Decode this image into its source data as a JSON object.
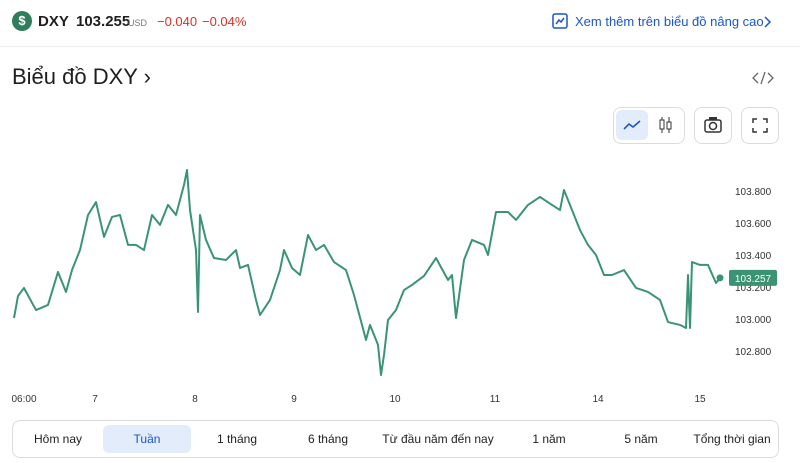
{
  "header": {
    "symbol": "DXY",
    "price": "103.255",
    "currency": "USD",
    "change": "−0.040",
    "change_percent": "−0.04%",
    "link": "Xem thêm trên biểu đồ nâng cao"
  },
  "chart_data": {
    "type": "line",
    "title": "Biểu đồ DXY ›",
    "color": "#3a9474",
    "x": [
      0,
      0.04,
      0.1,
      0.22,
      0.34,
      0.44,
      0.52,
      0.58,
      0.66,
      0.74,
      0.82,
      0.9,
      0.98,
      1.06,
      1.14,
      1.22,
      1.3,
      1.38,
      1.46,
      1.54,
      1.62,
      1.7,
      1.73,
      1.76,
      1.82,
      1.84,
      1.86,
      1.92,
      2.0,
      2.12,
      2.22,
      2.26,
      2.34,
      2.42,
      2.46,
      2.56,
      2.66,
      2.7,
      2.78,
      2.86,
      2.94,
      3.02,
      3.1,
      3.2,
      3.32,
      3.4,
      3.48,
      3.52,
      3.56,
      3.64,
      3.67,
      3.7,
      3.74,
      3.82,
      3.9,
      3.98,
      4.1,
      4.22,
      4.34,
      4.38,
      4.42,
      4.5,
      4.58,
      4.7,
      4.74,
      4.82,
      4.94,
      5.02,
      5.14,
      5.26,
      5.38,
      5.46,
      5.5,
      5.58,
      5.66,
      5.74,
      5.82,
      5.9,
      5.98,
      6.1,
      6.22,
      6.34,
      6.46,
      6.54,
      6.66,
      6.72,
      6.74,
      6.76,
      6.78,
      6.86,
      6.94,
      7.02,
      7.06
    ],
    "values": [
      103.006,
      103.144,
      103.194,
      103.056,
      103.088,
      103.294,
      103.169,
      103.306,
      103.431,
      103.65,
      103.731,
      103.513,
      103.638,
      103.65,
      103.463,
      103.463,
      103.431,
      103.65,
      103.588,
      103.713,
      103.65,
      103.838,
      103.931,
      103.681,
      103.431,
      103.044,
      103.65,
      103.494,
      103.381,
      103.369,
      103.431,
      103.319,
      103.338,
      103.119,
      103.025,
      103.119,
      103.306,
      103.431,
      103.319,
      103.275,
      103.525,
      103.431,
      103.463,
      103.356,
      103.306,
      103.15,
      102.963,
      102.869,
      102.963,
      102.838,
      102.65,
      102.775,
      102.994,
      103.056,
      103.181,
      103.213,
      103.269,
      103.381,
      103.244,
      103.275,
      103.006,
      103.369,
      103.494,
      103.463,
      103.4,
      103.669,
      103.669,
      103.619,
      103.713,
      103.763,
      103.713,
      103.681,
      103.806,
      103.681,
      103.556,
      103.463,
      103.4,
      103.275,
      103.275,
      103.306,
      103.194,
      103.169,
      103.119,
      102.981,
      102.963,
      102.944,
      103.275,
      102.944,
      103.356,
      103.338,
      103.338,
      103.225,
      103.257
    ],
    "last_value": 103.257,
    "xlim": [
      0,
      7.2
    ],
    "xticks": [
      {
        "value": 0.1,
        "label": "06:00"
      },
      {
        "value": 0.81,
        "label": "7"
      },
      {
        "value": 1.81,
        "label": "8"
      },
      {
        "value": 2.8,
        "label": "9"
      },
      {
        "value": 3.81,
        "label": "10"
      },
      {
        "value": 4.81,
        "label": "11"
      },
      {
        "value": 5.84,
        "label": "14"
      },
      {
        "value": 6.86,
        "label": "15"
      }
    ],
    "ylim": [
      102.6,
      104.0
    ],
    "yticks": [
      {
        "value": 103.8,
        "label": "103.800"
      },
      {
        "value": 103.6,
        "label": "103.600"
      },
      {
        "value": 103.4,
        "label": "103.400"
      },
      {
        "value": 103.2,
        "label": "103.200"
      },
      {
        "value": 103.0,
        "label": "103.000"
      },
      {
        "value": 102.8,
        "label": "102.800"
      }
    ],
    "grid": false
  },
  "range_tabs": [
    "Hôm nay",
    "Tuần",
    "1 tháng",
    "6 tháng",
    "Từ đầu năm đến nay",
    "1 năm",
    "5 năm",
    "Tổng thời gian"
  ]
}
